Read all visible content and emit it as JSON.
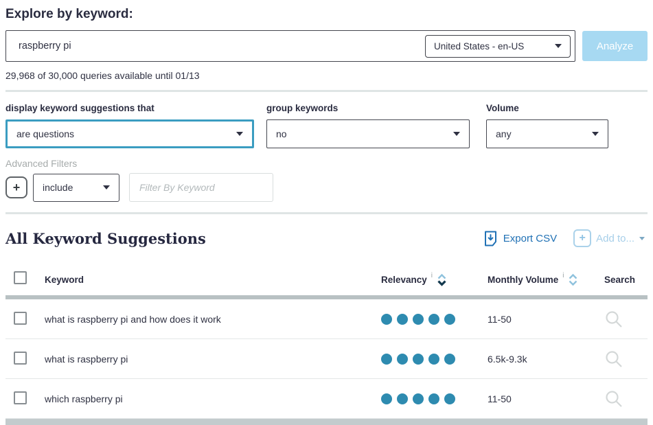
{
  "page": {
    "title": "Explore by keyword:",
    "quota": "29,968 of 30,000 queries available until 01/13"
  },
  "search": {
    "keyword_value": "raspberry pi",
    "locale_selected": "United States - en-US",
    "analyze_label": "Analyze"
  },
  "filters": {
    "suggestions_label": "display keyword suggestions that",
    "suggestions_selected": "are questions",
    "group_label": "group keywords",
    "group_selected": "no",
    "volume_label": "Volume",
    "volume_selected": "any",
    "advanced_label": "Advanced Filters",
    "advanced_mode_selected": "include",
    "advanced_placeholder": "Filter By Keyword"
  },
  "suggestions": {
    "heading": "All Keyword Suggestions",
    "export_label": "Export CSV",
    "add_to_label": "Add to...",
    "columns": {
      "keyword": "Keyword",
      "relevancy": "Relevancy",
      "volume": "Monthly Volume",
      "search": "Search"
    },
    "rows": [
      {
        "keyword": "what is raspberry pi and how does it work",
        "relevancy": 5,
        "volume": "11-50"
      },
      {
        "keyword": "what is raspberry pi",
        "relevancy": 5,
        "volume": "6.5k-9.3k"
      },
      {
        "keyword": "which raspberry pi",
        "relevancy": 5,
        "volume": "11-50"
      }
    ]
  },
  "icons": {
    "plus": "+",
    "info": "i"
  },
  "colors": {
    "accent_teal": "#3b9dc1",
    "relevancy_dot": "#2e8bb0",
    "analyze_bg": "#a7d9f2",
    "export_blue": "#2071b5",
    "addto_light_blue": "#a7cfe9",
    "header_band": "#b8c1c3"
  }
}
